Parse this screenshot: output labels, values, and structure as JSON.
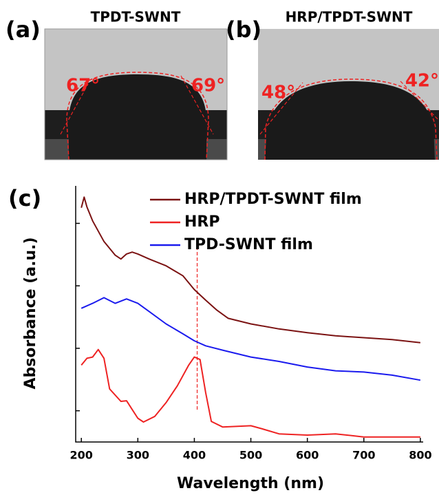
{
  "panels": [
    {
      "label": "(a)",
      "title": "TPDT-SWNT",
      "angles": [
        "67°",
        "69°"
      ]
    },
    {
      "label": "(b)",
      "title": "HRP/TPDT-SWNT",
      "angles": [
        "48°",
        "42°"
      ]
    }
  ],
  "chart_data": {
    "type": "line",
    "panel_label": "(c)",
    "x_label": "Wavelength (nm)",
    "y_label": "Absorbance (a.u.)",
    "xlim": [
      190,
      805
    ],
    "xticks": [
      200,
      300,
      400,
      500,
      600,
      700,
      800
    ],
    "ylim": [
      0,
      4.1
    ],
    "yticks": [
      0.5,
      1.5,
      2.5,
      3.5
    ],
    "vline_x": 405,
    "series": [
      {
        "name": "HRP/TPDT-SWNT film",
        "color": "#7b1212",
        "x": [
          200,
          205,
          210,
          220,
          240,
          260,
          270,
          280,
          290,
          300,
          320,
          350,
          380,
          400,
          420,
          440,
          460,
          500,
          550,
          600,
          650,
          700,
          750,
          800
        ],
        "values": [
          3.75,
          3.92,
          3.76,
          3.54,
          3.21,
          2.99,
          2.93,
          3.01,
          3.04,
          3.01,
          2.93,
          2.82,
          2.66,
          2.44,
          2.27,
          2.11,
          1.98,
          1.89,
          1.81,
          1.75,
          1.7,
          1.67,
          1.64,
          1.59
        ]
      },
      {
        "name": "HRP",
        "color": "#ee2222",
        "x": [
          200,
          210,
          220,
          230,
          240,
          250,
          270,
          280,
          290,
          300,
          310,
          330,
          350,
          370,
          390,
          400,
          410,
          420,
          430,
          450,
          500,
          520,
          550,
          600,
          650,
          700,
          800
        ],
        "values": [
          1.23,
          1.34,
          1.36,
          1.48,
          1.34,
          0.85,
          0.65,
          0.66,
          0.52,
          0.38,
          0.32,
          0.41,
          0.63,
          0.9,
          1.23,
          1.36,
          1.32,
          0.79,
          0.33,
          0.24,
          0.26,
          0.21,
          0.13,
          0.11,
          0.13,
          0.08,
          0.08
        ]
      },
      {
        "name": "TPD-SWNT film",
        "color": "#1a1aee",
        "x": [
          200,
          220,
          240,
          260,
          280,
          300,
          320,
          350,
          380,
          400,
          420,
          450,
          500,
          550,
          600,
          650,
          700,
          750,
          800
        ],
        "values": [
          2.14,
          2.22,
          2.31,
          2.22,
          2.29,
          2.22,
          2.09,
          1.89,
          1.73,
          1.62,
          1.54,
          1.47,
          1.36,
          1.29,
          1.2,
          1.14,
          1.12,
          1.07,
          0.99
        ]
      }
    ]
  }
}
